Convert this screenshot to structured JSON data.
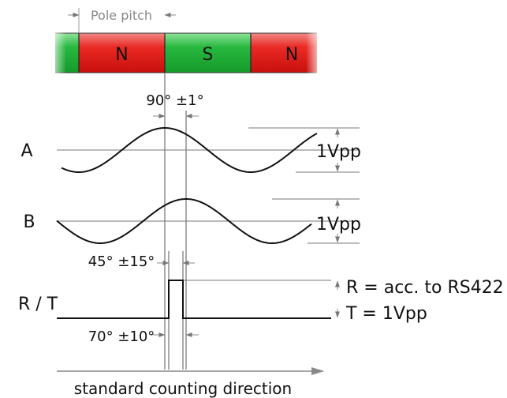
{
  "magnet": {
    "pitch_label": "Pole pitch",
    "poles": [
      "N",
      "S",
      "N"
    ],
    "colors": {
      "north": "#e8231f",
      "south": "#22b13a"
    }
  },
  "labels": {
    "phase_ab": "90° ±1°",
    "signal_a": "A",
    "signal_b": "B",
    "amp_a": "1Vpp",
    "amp_b": "1Vpp",
    "signal_rt": "R / T",
    "ref_width": "45° ±15°",
    "ref_offset": "70° ±10°",
    "r_desc": "R = acc. to RS422",
    "t_desc": "T = 1Vpp",
    "direction": "standard counting direction"
  }
}
